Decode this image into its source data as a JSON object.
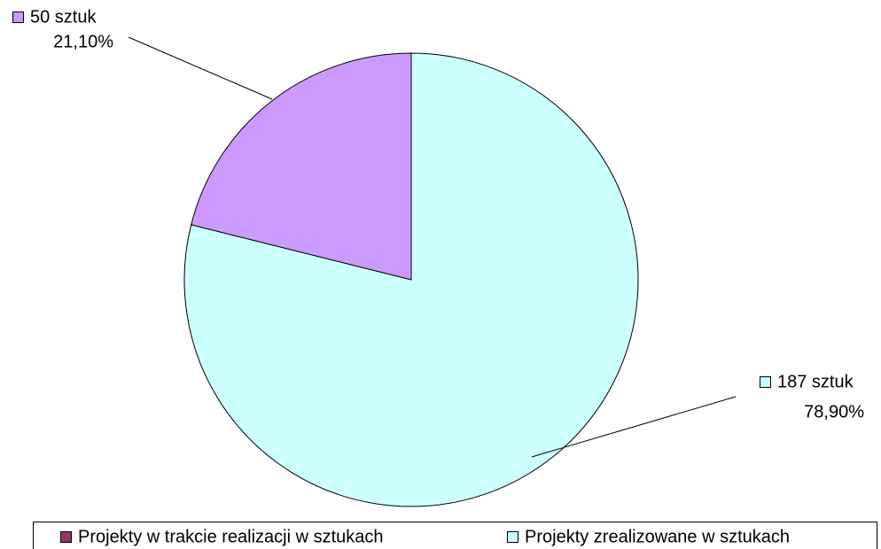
{
  "chart_data": {
    "type": "pie",
    "categories": [
      "Projekty w trakcie realizacji w sztukach",
      "Projekty zrealizowane w sztukach"
    ],
    "values": [
      50,
      187
    ],
    "value_labels": [
      "50 sztuk",
      "187 sztuk"
    ],
    "percentages": [
      21.1,
      78.9
    ],
    "percentage_labels": [
      "21,10%",
      "78,90%"
    ],
    "colors": [
      "#cc99ff",
      "#ccffff"
    ],
    "legend_colors": [
      "#993366",
      "#ccffff"
    ],
    "legend": "bottom"
  }
}
